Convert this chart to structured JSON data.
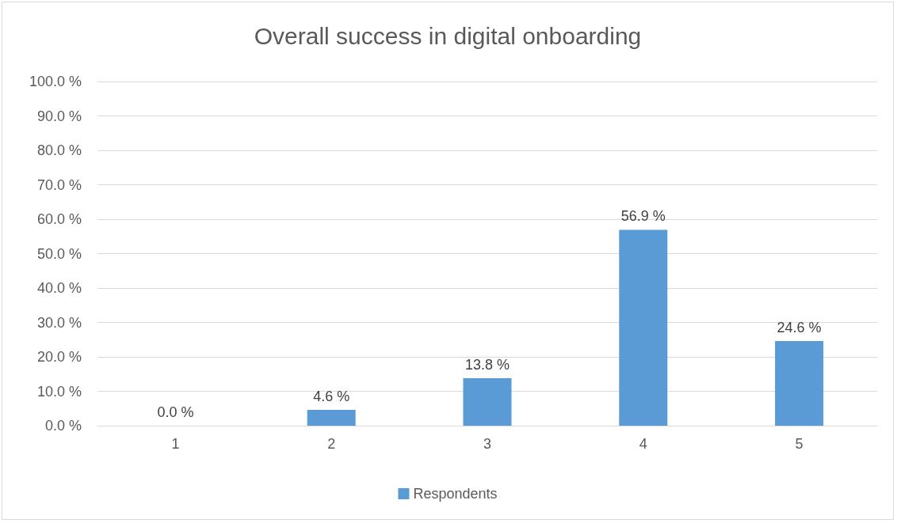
{
  "chart_data": {
    "type": "bar",
    "title": "Overall success in digital onboarding",
    "categories": [
      "1",
      "2",
      "3",
      "4",
      "5"
    ],
    "series": [
      {
        "name": "Respondents",
        "color": "#5b9bd5",
        "values": [
          0,
          4.6,
          13.8,
          56.9,
          24.6
        ],
        "value_labels": [
          "0.0 %",
          "4.6 %",
          "13.8 %",
          "56.9 %",
          "24.6 %"
        ]
      }
    ],
    "ylim": [
      0,
      100
    ],
    "yticks": [
      {
        "value": 0,
        "label": "0.0 %"
      },
      {
        "value": 10,
        "label": "10.0 %"
      },
      {
        "value": 20,
        "label": "20.0 %"
      },
      {
        "value": 30,
        "label": "30.0 %"
      },
      {
        "value": 40,
        "label": "40.0 %"
      },
      {
        "value": 50,
        "label": "50.0 %"
      },
      {
        "value": 60,
        "label": "60.0 %"
      },
      {
        "value": 70,
        "label": "70.0 %"
      },
      {
        "value": 80,
        "label": "80.0 %"
      },
      {
        "value": 90,
        "label": "90.0 %"
      },
      {
        "value": 100,
        "label": "100.0 %"
      }
    ],
    "grid": "y",
    "legend": "bottom"
  }
}
